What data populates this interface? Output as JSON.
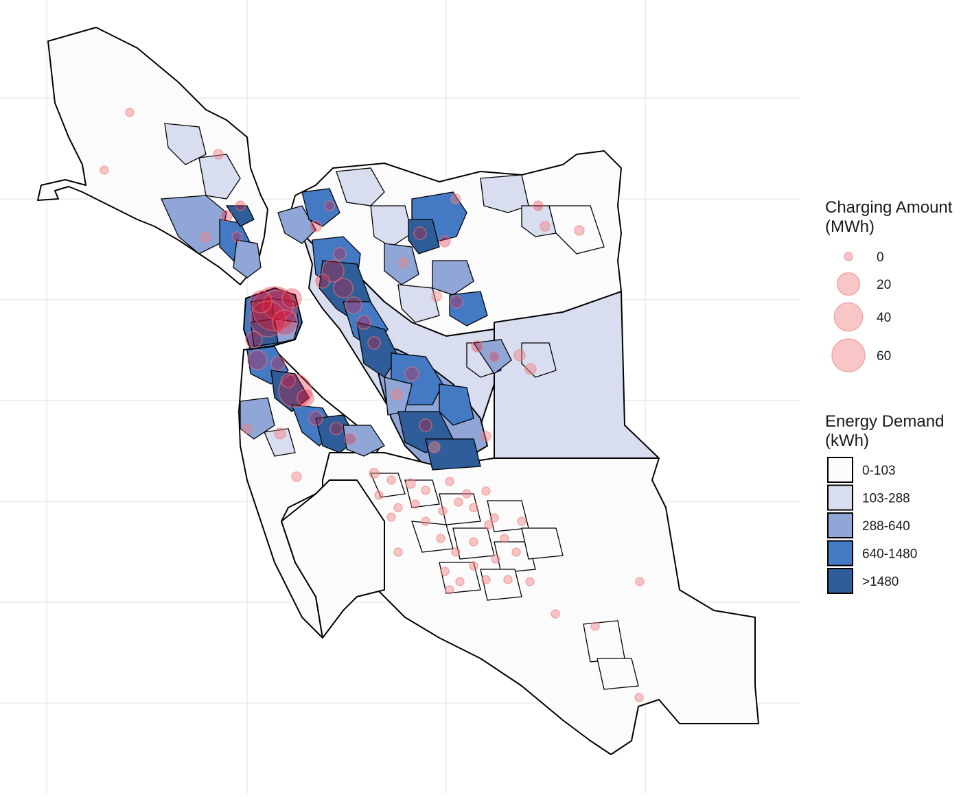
{
  "map": {
    "grid_lines": true,
    "background": "#ffffff",
    "grid_color": "#e8e8e8",
    "region_outline_color": "#000000"
  },
  "legend": {
    "charging_amount": {
      "title_line1": "Charging Amount",
      "title_line2": "(MWh)",
      "marker_color": "#f08080",
      "entries": [
        {
          "label": "0",
          "value": 0
        },
        {
          "label": "20",
          "value": 20
        },
        {
          "label": "40",
          "value": 40
        },
        {
          "label": "60",
          "value": 60
        }
      ]
    },
    "energy_demand": {
      "title_line1": "Energy Demand",
      "title_line2": "(kWh)",
      "entries": [
        {
          "label": "0-103",
          "color": "#fbfbfc"
        },
        {
          "label": "103-288",
          "color": "#d8deef"
        },
        {
          "label": "288-640",
          "color": "#8fa6d6"
        },
        {
          "label": "640-1480",
          "color": "#4479c4"
        },
        {
          "label": ">1480",
          "color": "#2f5d99"
        }
      ]
    }
  }
}
